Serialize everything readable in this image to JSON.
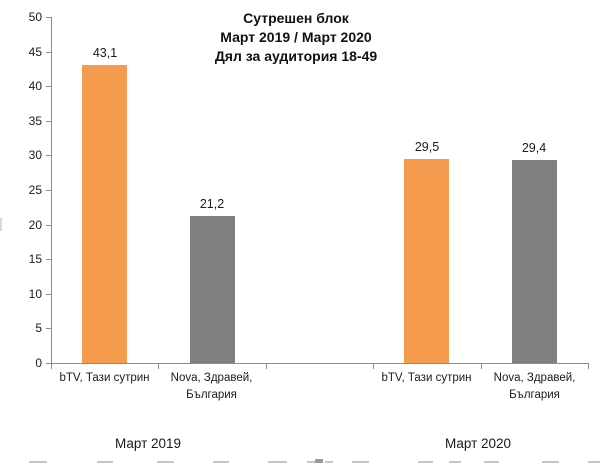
{
  "page": {
    "background": "#FFFFFF"
  },
  "chart_data": {
    "type": "bar",
    "title": "Сутрешен блок\nМарт 2019 / Март 2020\nДял за аудитория 18-49",
    "title_lines": [
      "Сутрешен блок",
      "Март 2019 / Март 2020",
      "Дял за аудитория 18-49"
    ],
    "categories": [
      "bTV, Тази сутрин",
      "Nova, Здравей, България",
      "",
      "bTV, Тази сутрин",
      "Nova, Здравей, България"
    ],
    "category_label_lines": [
      [
        "bTV, Тази сутрин"
      ],
      [
        "Nova, Здравей,",
        "България"
      ],
      [],
      [
        "bTV, Тази сутрин"
      ],
      [
        "Nova, Здравей,",
        "България"
      ]
    ],
    "values": [
      43.1,
      21.2,
      null,
      29.5,
      29.4
    ],
    "value_labels": [
      "43,1",
      "21,2",
      "",
      "29,5",
      "29,4"
    ],
    "bar_colors": [
      "#F49B4D",
      "#7F7F7F",
      null,
      "#F49B4D",
      "#7F7F7F"
    ],
    "group_labels": [
      "Март 2019",
      "Март 2020"
    ],
    "ylim": [
      0,
      50
    ],
    "ytick_step": 5,
    "ytick_labels": [
      "0",
      "5",
      "10",
      "15",
      "20",
      "25",
      "30",
      "35",
      "40",
      "45",
      "50"
    ],
    "grid": false,
    "legend": "none",
    "xlabel": "",
    "ylabel": ""
  },
  "colors": {
    "bar_orange": "#F49B4D",
    "bar_gray": "#7F7F7F",
    "axis": "#8C8C8C",
    "text": "#1A1A1A"
  }
}
